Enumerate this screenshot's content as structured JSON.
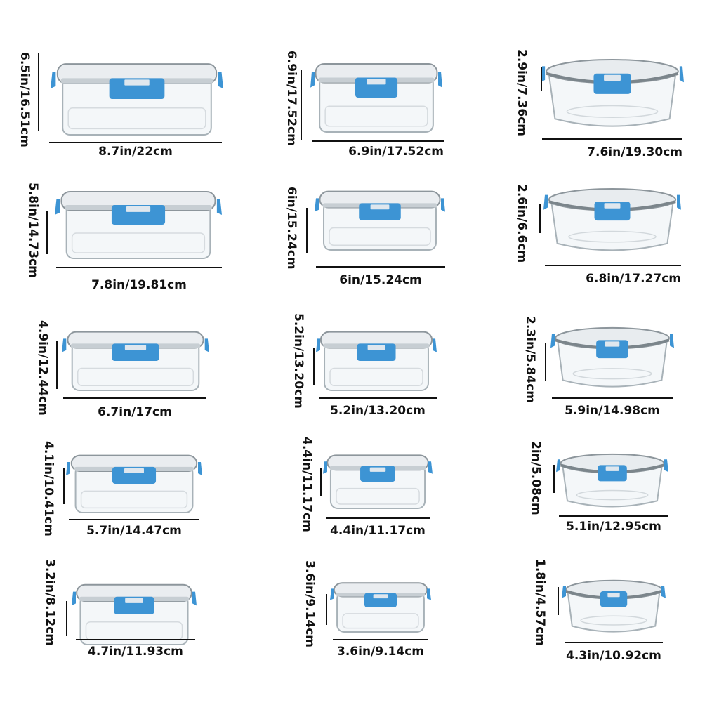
{
  "accent_color": "#3d94d4",
  "containers": [
    {
      "shape": "rectangle",
      "width_label": "8.7in/22cm",
      "height_label": "6.5in/16.51cm"
    },
    {
      "shape": "square",
      "width_label": "6.9in/17.52cm",
      "height_label": "6.9in/17.52cm"
    },
    {
      "shape": "round",
      "width_label": "7.6in/19.30cm",
      "height_label": "2.9in/7.36cm"
    },
    {
      "shape": "rectangle",
      "width_label": "7.8in/19.81cm",
      "height_label": "5.8in/14.73cm"
    },
    {
      "shape": "square",
      "width_label": "6in/15.24cm",
      "height_label": "6in/15.24cm"
    },
    {
      "shape": "round",
      "width_label": "6.8in/17.27cm",
      "height_label": "2.6in/6.6cm"
    },
    {
      "shape": "rectangle",
      "width_label": "6.7in/17cm",
      "height_label": "4.9in/12.44cm"
    },
    {
      "shape": "square",
      "width_label": "5.2in/13.20cm",
      "height_label": "5.2in/13.20cm"
    },
    {
      "shape": "round",
      "width_label": "5.9in/14.98cm",
      "height_label": "2.3in/5.84cm"
    },
    {
      "shape": "rectangle",
      "width_label": "5.7in/14.47cm",
      "height_label": "4.1in/10.41cm"
    },
    {
      "shape": "square",
      "width_label": "4.4in/11.17cm",
      "height_label": "4.4in/11.17cm"
    },
    {
      "shape": "round",
      "width_label": "5.1in/12.95cm",
      "height_label": "2in/5.08cm"
    },
    {
      "shape": "rectangle",
      "width_label": "4.7in/11.93cm",
      "height_label": "3.2in/8.12cm"
    },
    {
      "shape": "square",
      "width_label": "3.6in/9.14cm",
      "height_label": "3.6in/9.14cm"
    },
    {
      "shape": "round",
      "width_label": "4.3in/10.92cm",
      "height_label": "1.8in/4.57cm"
    }
  ]
}
